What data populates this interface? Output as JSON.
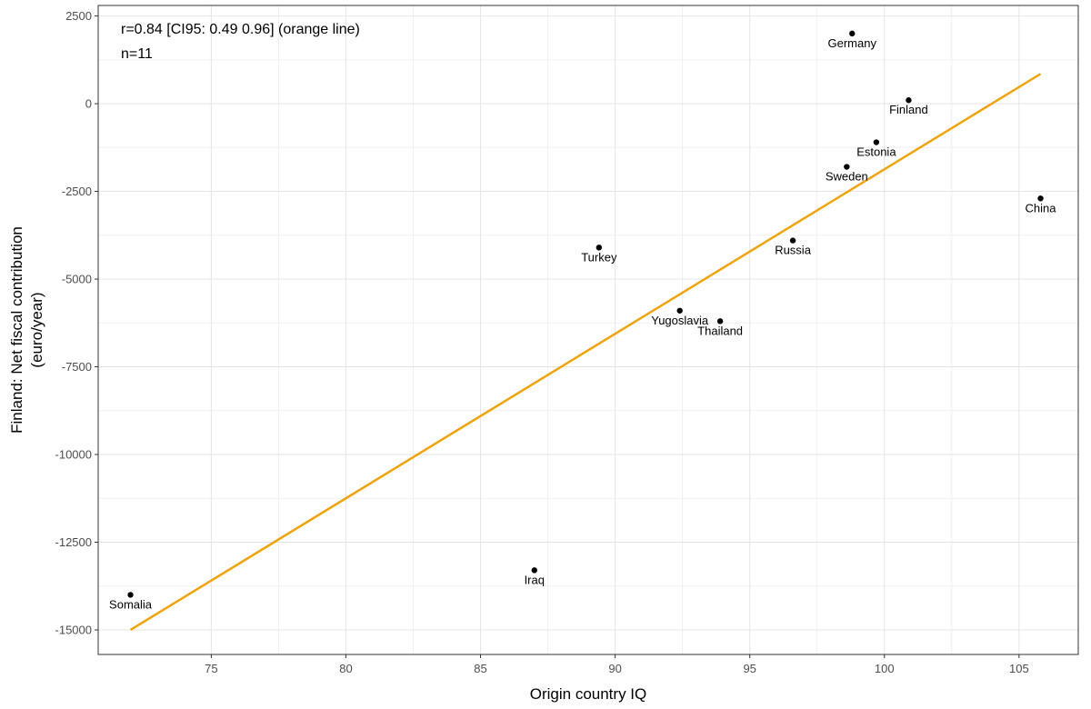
{
  "chart_data": {
    "type": "scatter",
    "title": "",
    "xlabel": "Origin country IQ",
    "ylabel_lines": [
      "Finland: Net fiscal contribution",
      "(euro/year)"
    ],
    "xlim": [
      70.8,
      107.2
    ],
    "ylim": [
      -15700,
      2800
    ],
    "x_ticks": [
      75,
      80,
      85,
      90,
      95,
      100,
      105
    ],
    "y_ticks": [
      2500,
      0,
      -2500,
      -5000,
      -7500,
      -10000,
      -12500,
      -15000
    ],
    "grid": true,
    "annotations": [
      "r=0.84 [CI95: 0.49 0.96] (orange line)",
      "n=11"
    ],
    "points": [
      {
        "label": "Germany",
        "x": 98.8,
        "y": 2000
      },
      {
        "label": "Finland",
        "x": 100.9,
        "y": 100
      },
      {
        "label": "Estonia",
        "x": 99.7,
        "y": -1100
      },
      {
        "label": "Sweden",
        "x": 98.6,
        "y": -1800
      },
      {
        "label": "China",
        "x": 105.8,
        "y": -2700
      },
      {
        "label": "Russia",
        "x": 96.6,
        "y": -3900
      },
      {
        "label": "Turkey",
        "x": 89.4,
        "y": -4100
      },
      {
        "label": "Yugoslavia",
        "x": 92.4,
        "y": -5900
      },
      {
        "label": "Thailand",
        "x": 93.9,
        "y": -6200
      },
      {
        "label": "Iraq",
        "x": 87.0,
        "y": -13300
      },
      {
        "label": "Somalia",
        "x": 72.0,
        "y": -14000
      }
    ],
    "fit_line": {
      "x": [
        72.0,
        105.8
      ],
      "y": [
        -15000,
        850
      ],
      "color": "#f0a30a"
    }
  }
}
